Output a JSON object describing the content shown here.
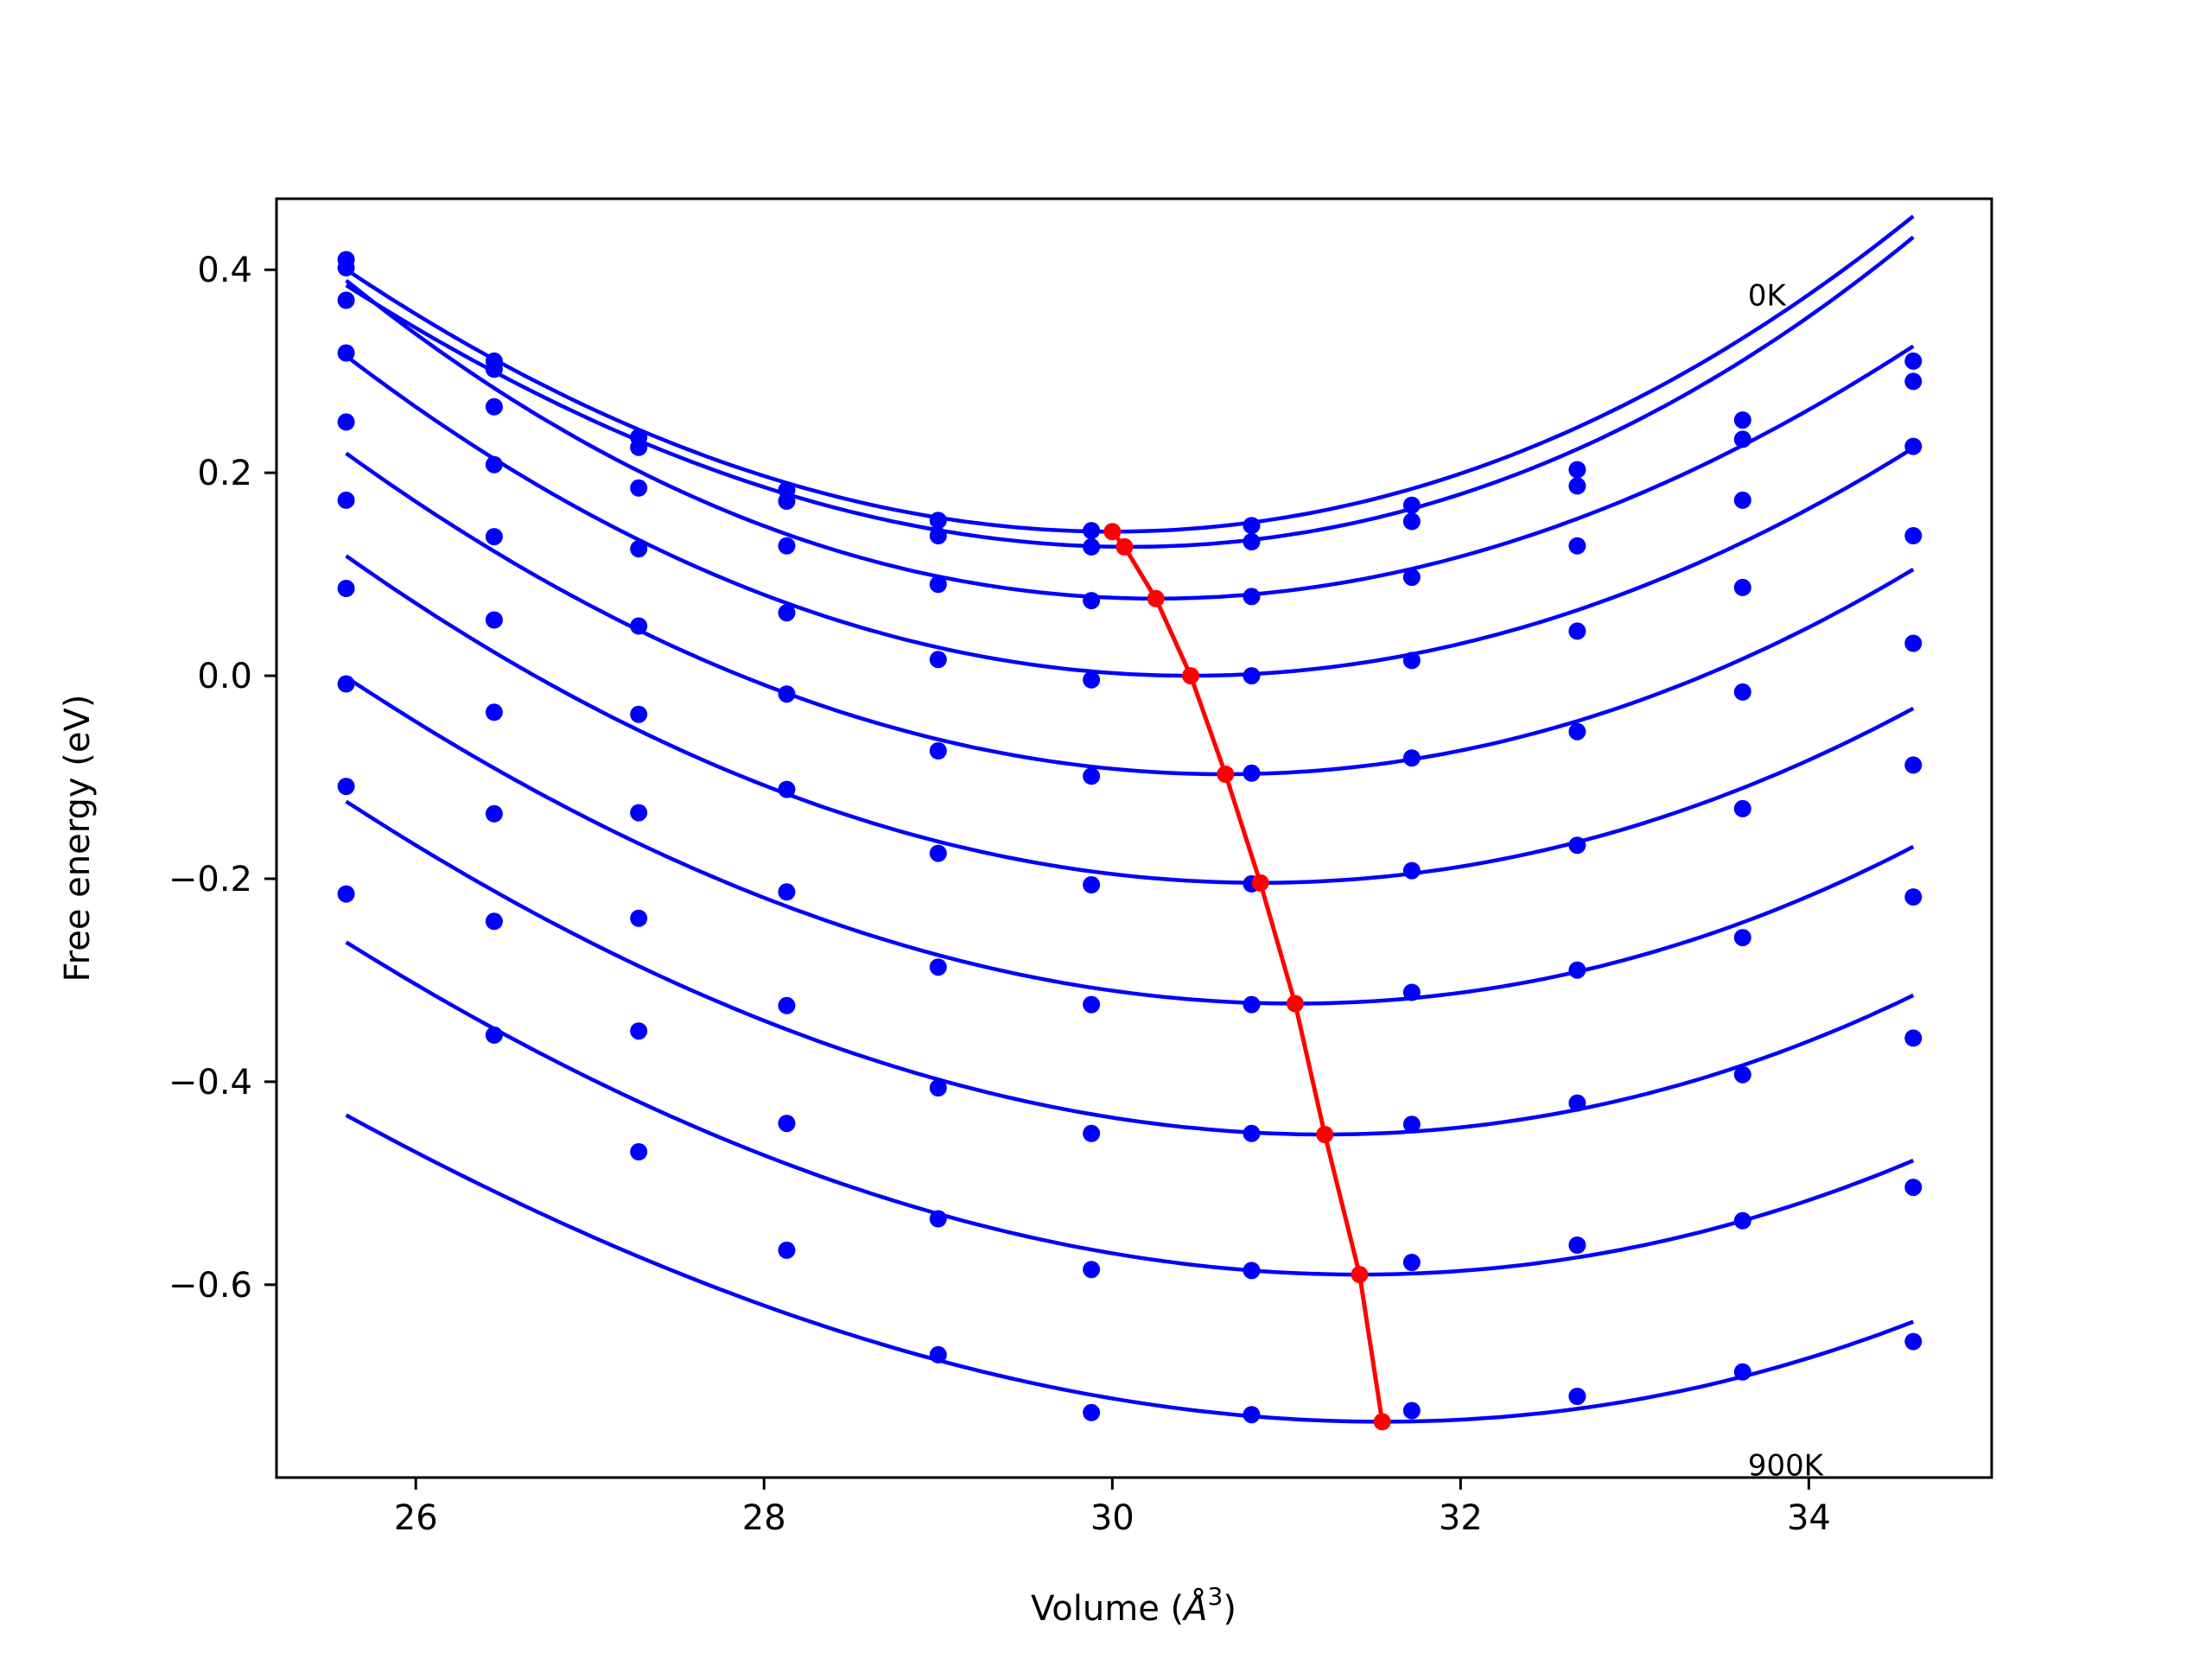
{
  "chart_data": {
    "type": "scatter",
    "title": "",
    "xlabel": "Volume ($\\AA^3$)",
    "xlabel_parts": {
      "pre": "Volume (",
      "unit": "Å",
      "sup": "3",
      "post": ")"
    },
    "ylabel": "Free energy (eV)",
    "xlim": [
      25.2,
      35.05
    ],
    "ylim": [
      -0.79,
      0.47
    ],
    "xticks": [
      26,
      28,
      30,
      32,
      34
    ],
    "yticks": [
      0.4,
      0.2,
      0.0,
      -0.2,
      -0.4,
      -0.6
    ],
    "ytick_labels": [
      "0.4",
      "0.2",
      "0.0",
      "−0.2",
      "−0.4",
      "−0.6"
    ],
    "grid": false,
    "legend": "none",
    "colors": {
      "points": "#0000ff",
      "fits": "#0000ff",
      "minima": "#ff0000",
      "axes": "#000000"
    },
    "annotations": [
      {
        "text": "0K",
        "x": 33.65,
        "y": 0.365
      },
      {
        "text": "900K",
        "x": 33.65,
        "y": -0.788
      }
    ],
    "x": [
      25.6,
      26.45,
      27.28,
      28.13,
      29.0,
      29.88,
      30.8,
      31.72,
      32.67,
      33.62,
      34.6
    ],
    "series": [
      {
        "values": [
          0.41,
          0.31,
          0.235,
          0.183,
          0.153,
          0.143,
          0.148,
          0.168,
          0.203,
          0.252,
          0.31
        ],
        "fit": {
          "x0": 30.0,
          "y0": 0.142,
          "a": 0.014,
          "b": 0.00015
        }
      },
      {
        "values": [
          0.402,
          0.302,
          0.225,
          0.172,
          0.138,
          0.127,
          0.132,
          0.152,
          0.187,
          0.233,
          0.29
        ],
        "fit": {
          "x0": 30.1,
          "y0": 0.127,
          "a": 0.0139,
          "b": 0.00026
        }
      },
      {
        "values": [
          0.37,
          0.265,
          0.185,
          0.128,
          0.09,
          0.074,
          0.078,
          0.097,
          0.128,
          0.173,
          0.226
        ],
        "fit": {
          "x0": 30.25,
          "y0": 0.076,
          "a": 0.0138,
          "b": -0.00015
        }
      },
      {
        "values": [
          0.318,
          0.208,
          0.125,
          0.062,
          0.016,
          -0.004,
          0.0,
          0.015,
          0.044,
          0.087,
          0.138
        ],
        "fit": {
          "x0": 30.45,
          "y0": 0.0,
          "a": 0.0132,
          "b": -4e-05
        }
      },
      {
        "values": [
          0.25,
          0.137,
          0.049,
          -0.018,
          -0.074,
          -0.099,
          -0.096,
          -0.081,
          -0.055,
          -0.016,
          0.032
        ],
        "fit": {
          "x0": 30.65,
          "y0": -0.097,
          "a": 0.0127,
          "b": 6e-05
        }
      },
      {
        "values": [
          0.173,
          0.055,
          -0.038,
          -0.112,
          -0.175,
          -0.206,
          -0.205,
          -0.192,
          -0.167,
          -0.131,
          -0.088
        ],
        "fit": {
          "x0": 30.85,
          "y0": -0.204,
          "a": 0.012,
          "b": 6e-05
        }
      },
      {
        "values": [
          0.086,
          -0.036,
          -0.135,
          -0.213,
          -0.287,
          -0.324,
          -0.324,
          -0.312,
          -0.29,
          -0.258,
          -0.218
        ],
        "fit": {
          "x0": 31.05,
          "y0": -0.323,
          "a": 0.0117,
          "b": 0.00016
        }
      },
      {
        "values": [
          -0.008,
          -0.136,
          -0.239,
          -0.325,
          -0.406,
          -0.451,
          -0.451,
          -0.442,
          -0.421,
          -0.393,
          -0.357
        ],
        "fit": {
          "x0": 31.22,
          "y0": -0.452,
          "a": 0.0114,
          "b": 0.00018
        }
      },
      {
        "values": [
          -0.109,
          -0.242,
          -0.35,
          -0.441,
          -0.535,
          -0.585,
          -0.586,
          -0.578,
          -0.561,
          -0.537,
          -0.504
        ],
        "fit": {
          "x0": 31.42,
          "y0": -0.59,
          "a": 0.0106,
          "b": 0.00016
        }
      },
      {
        "values": [
          -0.215,
          -0.354,
          -0.469,
          -0.566,
          -0.669,
          -0.726,
          -0.728,
          -0.724,
          -0.71,
          -0.686,
          -0.656
        ],
        "fit": {
          "x0": 31.55,
          "y0": -0.735,
          "a": 0.0099,
          "b": 0.00023
        }
      }
    ],
    "minima": {
      "x": [
        30.0,
        30.07,
        30.25,
        30.45,
        30.65,
        30.85,
        31.05,
        31.22,
        31.42,
        31.55
      ],
      "y": [
        0.142,
        0.127,
        0.076,
        0.0,
        -0.097,
        -0.204,
        -0.323,
        -0.452,
        -0.59,
        -0.735
      ]
    }
  }
}
